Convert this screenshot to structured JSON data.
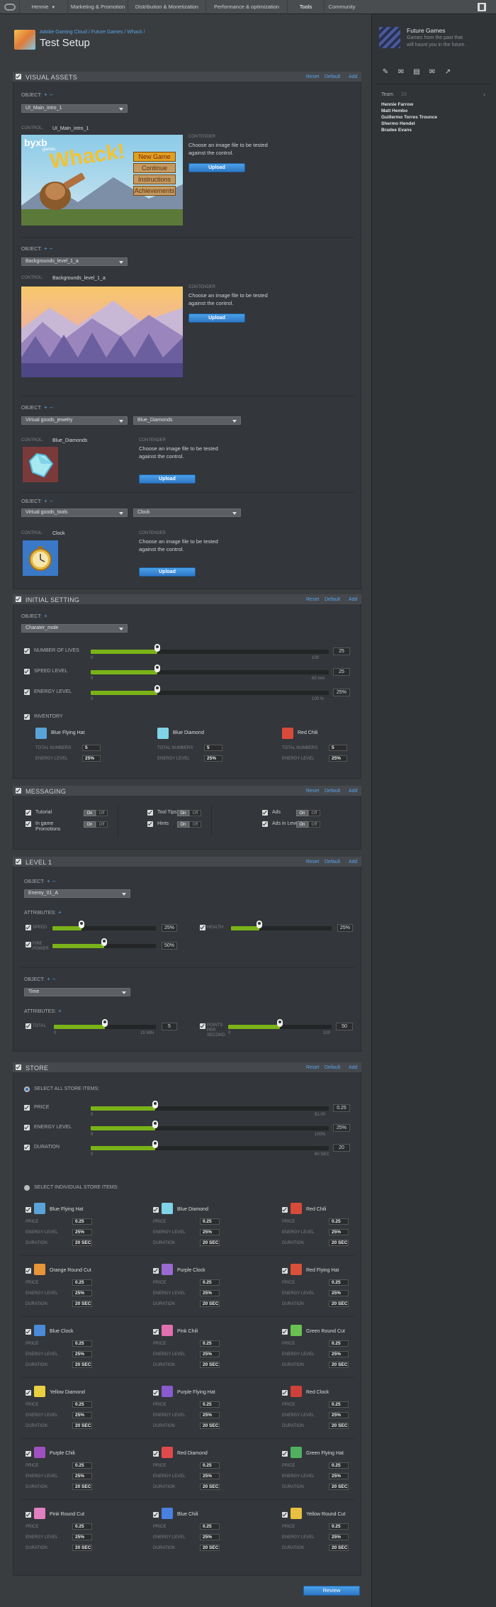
{
  "nav": {
    "items": [
      {
        "label": "Hennie",
        "x": 27,
        "w": 68
      },
      {
        "label": "Marketing & Promotion",
        "x": 95,
        "w": 85
      },
      {
        "label": "Distribution & Monetization",
        "x": 180,
        "w": 110
      },
      {
        "label": "Performance & optimization",
        "x": 290,
        "w": 115
      },
      {
        "label": "Tools",
        "x": 405,
        "w": 52
      },
      {
        "label": "Community",
        "x": 457,
        "w": 50
      }
    ]
  },
  "header": {
    "breadcrumb": "Adobe Gaming Cloud / Future Games / Whack /",
    "title": "Test Setup"
  },
  "visual_assets": {
    "title": "VISUAL ASSETS",
    "reset": "Reset",
    "default": "Default",
    "add": "Add",
    "object_label": "OBJECT:",
    "control_label": "CONTROL:",
    "contender_label": "CONTENDER",
    "contender_text1": "Choose an image file to be tested",
    "contender_text2": "against the control.",
    "upload": "Upload",
    "obj1": "UI_Main_intro_1",
    "ctrl1": "UI_Main_intro_1",
    "obj2": "Backgrounds_level_1_a",
    "ctrl2": "Backgrounds_level_1_a",
    "obj3a": "Virtual goods_jewelry",
    "obj3b": "Blue_Diamonds",
    "ctrl3": "Blue_Diamonds",
    "obj4a": "Virtual goods_tools",
    "obj4b": "Clock",
    "ctrl4": "Clock",
    "art_brand": "byxb",
    "art_brand_sub": "games",
    "art_title": "Whack!",
    "art_menu": [
      "New Game",
      "Continue",
      "Instructions",
      "Achievements"
    ]
  },
  "initial_setting": {
    "title": "INITIAL SETTING",
    "reset": "Reset",
    "default": "Default",
    "add": "Add",
    "object_label": "OBJECT:",
    "object": "Charater_mole",
    "sliders": [
      {
        "label": "NUMBER OF LIVES",
        "value": "25",
        "fraction": 0.28,
        "min": "0",
        "max": "100"
      },
      {
        "label": "SPEED LEVEL",
        "value": "25",
        "fraction": 0.28,
        "min": "0",
        "max": "65 mm"
      },
      {
        "label": "ENERGY LEVEL",
        "value": "25%",
        "fraction": 0.28,
        "min": "0",
        "max": "100 %"
      }
    ],
    "inventory_label": "INVENTORY",
    "inventory": [
      {
        "name": "Blue Flying Hat",
        "color": "#5aa3d8",
        "total": "5",
        "energy": "25%"
      },
      {
        "name": "Blue Diamond",
        "color": "#7fd4e8",
        "total": "5",
        "energy": "25%"
      },
      {
        "name": "Red Chili",
        "color": "#d84a3a",
        "total": "5",
        "energy": "25%"
      }
    ],
    "total_numbers": "TOTAL NUMBERS",
    "energy_level": "ENERGY LEVEL"
  },
  "messaging": {
    "title": "MESSAGING",
    "reset": "Reset",
    "default": "Default",
    "add": "Add",
    "on": "On",
    "off": "Off",
    "col1": [
      "Tutorial",
      "In game Promotions"
    ],
    "col2": [
      "Tool Tips",
      "Hints"
    ],
    "col3": [
      "Ads",
      "Ads in Levels"
    ]
  },
  "level1": {
    "title": "LEVEL 1",
    "reset": "Reset",
    "default": "Default",
    "add": "Add",
    "object_label": "OBJECT:",
    "attributes_label": "ATTRIBUTES:",
    "obj1": "Enemy_01_A",
    "speed": "SPEED",
    "speed_val": "25%",
    "speed_frac": 0.28,
    "health": "HEALTH",
    "health_val": "25%",
    "health_frac": 0.28,
    "fire": "FIRE POWER",
    "fire_val": "50%",
    "fire_frac": 0.5,
    "obj2": "Time",
    "total": "TOTAL",
    "total_val": "5",
    "total_frac": 0.5,
    "total_min": "0",
    "total_max": "15 MIN",
    "points": "POINTS PER SECOND",
    "points_val": "50",
    "points_frac": 0.5,
    "points_min": "0",
    "points_max": "100"
  },
  "store": {
    "title": "STORE",
    "reset": "Reset",
    "default": "Default",
    "add": "Add",
    "select_all": "SELECT ALL STORE ITEMS:",
    "sliders": [
      {
        "label": "PRICE",
        "value": "0.25",
        "fraction": 0.27,
        "min": "0",
        "max": "$1.00"
      },
      {
        "label": "ENERGY LEVEL",
        "value": "25%",
        "fraction": 0.27,
        "min": "0",
        "max": "100%"
      },
      {
        "label": "DURATION",
        "value": "20",
        "fraction": 0.27,
        "min": "0",
        "max": "60 SEC"
      }
    ],
    "select_individual": "SELECT INDIVIDUAL STORE ITEMS:",
    "price": "PRICE",
    "energy": "ENERGY LEVEL",
    "duration": "DURATION",
    "item_price": "0.25",
    "item_energy": "25%",
    "item_duration": "20 SEC",
    "items": [
      {
        "name": "Blue Flying Hat",
        "color": "#5aa3d8"
      },
      {
        "name": "Blue Diamond",
        "color": "#7fd4e8"
      },
      {
        "name": "Red Chili",
        "color": "#d84a3a"
      },
      {
        "name": "Orange Round Cut",
        "color": "#e8953a"
      },
      {
        "name": "Purple Clock",
        "color": "#9a6ad0"
      },
      {
        "name": "Red Flying Hat",
        "color": "#d8503a"
      },
      {
        "name": "Blue Clock",
        "color": "#4a8ad8"
      },
      {
        "name": "Pink Chili",
        "color": "#e070b0"
      },
      {
        "name": "Green Round Cut",
        "color": "#6ac050"
      },
      {
        "name": "Yellow Diamond",
        "color": "#e8d040"
      },
      {
        "name": "Purple Flying Hat",
        "color": "#8a5ad0"
      },
      {
        "name": "Red Clock",
        "color": "#d0403a"
      },
      {
        "name": "Purple Chili",
        "color": "#a050c0"
      },
      {
        "name": "Red Diamond",
        "color": "#e04a4a"
      },
      {
        "name": "Green Flying Hat",
        "color": "#50b060"
      },
      {
        "name": "Pink Round Cut",
        "color": "#e080c0"
      },
      {
        "name": "Blue Chili",
        "color": "#4a80e0"
      },
      {
        "name": "Yellow Round Cut",
        "color": "#e8c040"
      }
    ]
  },
  "sidebar": {
    "title": "Future Games",
    "desc1": "Games from the past that",
    "desc2": "will haunt you in the future.",
    "team_label": "Team",
    "team_count": "23",
    "members": [
      "Hennie Farrow",
      "Matt Hembo",
      "Guillermo Torres Trounce",
      "Shermo Hendel",
      "Bradee Evans"
    ]
  },
  "review": "Review"
}
